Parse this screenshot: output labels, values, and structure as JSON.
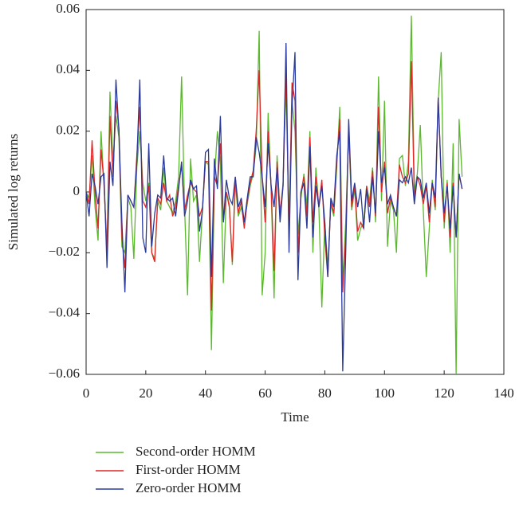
{
  "chart_data": {
    "type": "line",
    "xlabel": "Time",
    "ylabel": "Simulated log returns",
    "x": [
      0,
      1,
      2,
      3,
      4,
      5,
      6,
      7,
      8,
      9,
      10,
      11,
      12,
      13,
      14,
      15,
      16,
      17,
      18,
      19,
      20,
      21,
      22,
      23,
      24,
      25,
      26,
      27,
      28,
      29,
      30,
      31,
      32,
      33,
      34,
      35,
      36,
      37,
      38,
      39,
      40,
      41,
      42,
      43,
      44,
      45,
      46,
      47,
      48,
      49,
      50,
      51,
      52,
      53,
      54,
      55,
      56,
      57,
      58,
      59,
      60,
      61,
      62,
      63,
      64,
      65,
      66,
      67,
      68,
      69,
      70,
      71,
      72,
      73,
      74,
      75,
      76,
      77,
      78,
      79,
      80,
      81,
      82,
      83,
      84,
      85,
      86,
      87,
      88,
      89,
      90,
      91,
      92,
      93,
      94,
      95,
      96,
      97,
      98,
      99,
      100,
      101,
      102,
      103,
      104,
      105,
      106,
      107,
      108,
      109,
      110,
      111,
      112,
      113,
      114,
      115,
      116,
      117,
      118,
      119,
      120,
      121,
      122,
      123,
      124,
      125,
      126
    ],
    "series": [
      {
        "name": "Second-order HOMM",
        "color": "#5cb82e",
        "values": [
          0.0,
          -0.002,
          0.012,
          -0.005,
          -0.016,
          0.02,
          0.002,
          -0.018,
          0.033,
          0.01,
          0.025,
          0.018,
          -0.018,
          -0.02,
          -0.002,
          -0.005,
          -0.022,
          0.008,
          0.02,
          0.003,
          -0.003,
          0.003,
          -0.02,
          -0.022,
          -0.003,
          -0.006,
          0.008,
          -0.003,
          -0.005,
          -0.007,
          -0.003,
          0.005,
          0.038,
          -0.005,
          -0.034,
          0.011,
          -0.003,
          -0.001,
          -0.023,
          -0.006,
          0.01,
          0.009,
          -0.052,
          0.004,
          0.02,
          0.01,
          -0.03,
          0.0,
          -0.004,
          -0.024,
          0.003,
          -0.008,
          -0.005,
          -0.01,
          -0.004,
          0.002,
          0.006,
          0.015,
          0.053,
          -0.034,
          -0.02,
          0.026,
          0.001,
          -0.035,
          0.012,
          -0.008,
          0.003,
          0.035,
          -0.01,
          0.03,
          0.02,
          -0.014,
          -0.002,
          0.006,
          -0.005,
          0.02,
          -0.02,
          0.008,
          -0.005,
          -0.038,
          -0.01,
          -0.025,
          -0.004,
          -0.008,
          0.008,
          0.028,
          -0.03,
          -0.01,
          0.02,
          -0.006,
          0.001,
          -0.016,
          -0.012,
          -0.01,
          0.002,
          -0.003,
          0.008,
          -0.01,
          0.038,
          -0.003,
          0.03,
          -0.018,
          -0.003,
          -0.006,
          -0.02,
          0.011,
          0.012,
          0.002,
          0.01,
          0.058,
          0.0,
          0.006,
          0.022,
          -0.006,
          -0.028,
          -0.012,
          0.004,
          -0.006,
          0.03,
          0.046,
          -0.012,
          0.004,
          -0.02,
          0.016,
          -0.06,
          0.024,
          0.005
        ]
      },
      {
        "name": "First-order HOMM",
        "color": "#e02828",
        "values": [
          0.0,
          -0.004,
          0.017,
          0.0,
          -0.012,
          0.014,
          0.003,
          -0.02,
          0.025,
          0.005,
          0.03,
          0.021,
          -0.015,
          -0.025,
          -0.001,
          -0.003,
          -0.005,
          0.012,
          0.028,
          -0.003,
          -0.005,
          0.002,
          -0.02,
          -0.023,
          -0.002,
          -0.004,
          0.003,
          -0.003,
          -0.001,
          -0.008,
          -0.005,
          0.002,
          0.009,
          -0.006,
          -0.001,
          0.003,
          0.001,
          0.0,
          -0.008,
          -0.005,
          0.01,
          0.01,
          -0.039,
          0.005,
          0.002,
          0.016,
          -0.01,
          0.0,
          -0.005,
          -0.023,
          0.005,
          -0.007,
          -0.003,
          -0.012,
          -0.003,
          0.003,
          0.007,
          0.02,
          0.04,
          0.005,
          -0.01,
          0.02,
          0.002,
          -0.026,
          0.01,
          -0.007,
          0.002,
          0.04,
          -0.015,
          0.036,
          0.03,
          -0.02,
          0.0,
          0.005,
          -0.008,
          0.018,
          -0.01,
          0.005,
          -0.005,
          0.004,
          -0.015,
          -0.028,
          -0.003,
          -0.007,
          0.01,
          0.024,
          -0.033,
          -0.015,
          0.022,
          -0.005,
          0.002,
          -0.013,
          -0.01,
          -0.012,
          0.002,
          -0.005,
          0.007,
          -0.008,
          0.028,
          0.0,
          0.01,
          -0.007,
          -0.002,
          -0.005,
          -0.008,
          0.009,
          0.005,
          0.003,
          0.006,
          0.043,
          -0.002,
          0.005,
          0.002,
          -0.004,
          0.002,
          -0.01,
          0.003,
          -0.005,
          0.031,
          0.005,
          -0.01,
          0.003,
          -0.015,
          0.003,
          -0.015,
          0.006,
          0.001
        ]
      },
      {
        "name": "Zero-order HOMM",
        "color": "#2a3a9a",
        "values": [
          0.0,
          -0.008,
          0.006,
          0.002,
          -0.004,
          0.005,
          0.006,
          -0.025,
          0.01,
          0.002,
          0.037,
          0.02,
          -0.01,
          -0.033,
          -0.001,
          -0.003,
          -0.005,
          0.01,
          0.037,
          -0.015,
          -0.02,
          0.016,
          -0.018,
          -0.007,
          -0.001,
          -0.002,
          0.012,
          -0.002,
          -0.003,
          -0.002,
          -0.008,
          0.001,
          0.01,
          -0.008,
          -0.003,
          0.004,
          0.001,
          0.002,
          -0.013,
          -0.006,
          0.013,
          0.014,
          -0.028,
          0.011,
          0.001,
          0.025,
          -0.01,
          0.004,
          -0.002,
          -0.004,
          0.005,
          -0.005,
          -0.002,
          -0.01,
          -0.002,
          0.005,
          0.005,
          0.018,
          0.013,
          0.005,
          -0.005,
          0.016,
          0.002,
          -0.005,
          0.008,
          -0.01,
          0.002,
          0.049,
          -0.02,
          0.028,
          0.046,
          -0.029,
          0.0,
          0.003,
          -0.012,
          0.015,
          -0.015,
          0.002,
          -0.005,
          0.002,
          -0.01,
          -0.028,
          -0.002,
          -0.005,
          0.012,
          0.02,
          -0.059,
          -0.02,
          0.024,
          -0.003,
          0.003,
          -0.005,
          0.001,
          -0.012,
          0.001,
          -0.01,
          0.005,
          -0.007,
          0.02,
          0.003,
          0.008,
          -0.004,
          -0.001,
          -0.005,
          -0.008,
          0.004,
          0.003,
          0.005,
          0.003,
          0.008,
          -0.004,
          0.005,
          0.004,
          -0.002,
          0.003,
          -0.007,
          0.003,
          -0.002,
          0.031,
          0.005,
          -0.007,
          0.002,
          -0.012,
          0.002,
          -0.015,
          0.006,
          0.001
        ]
      }
    ],
    "xlim": [
      0,
      140
    ],
    "xticks": [
      0,
      20,
      40,
      60,
      80,
      100,
      120,
      140
    ],
    "ylim": [
      -0.06,
      0.06
    ],
    "yticks": [
      {
        "value": -0.06,
        "label": "−0.06"
      },
      {
        "value": -0.04,
        "label": "−0.04"
      },
      {
        "value": -0.02,
        "label": "−0.02"
      },
      0,
      0.02,
      0.04,
      0.06
    ],
    "grid": false,
    "legend": "bottom"
  }
}
